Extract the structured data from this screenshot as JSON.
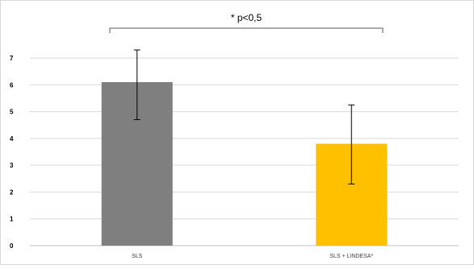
{
  "chart_data": {
    "type": "bar",
    "categories": [
      "SLS",
      "SLS + LINDESA*"
    ],
    "values": [
      6.1,
      3.8
    ],
    "error_bars": [
      {
        "low": 4.7,
        "high": 7.3
      },
      {
        "low": 2.3,
        "high": 5.25
      }
    ],
    "colors": [
      "#7f7f7f",
      "#ffc000"
    ],
    "ylim": [
      0,
      7
    ],
    "yticks": [
      "0",
      "1",
      "2",
      "3",
      "4",
      "5",
      "6",
      "7"
    ],
    "grid": true,
    "annotation": "* p<0,5"
  }
}
